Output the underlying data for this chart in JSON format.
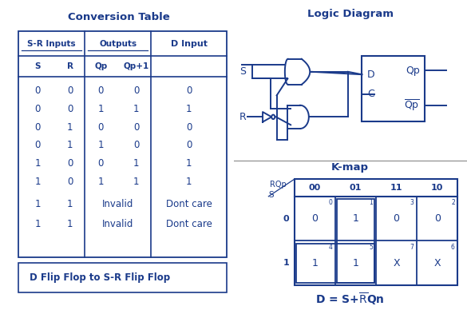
{
  "blue": "#1a3a8a",
  "light_blue_bg": "#e8f0ff",
  "table_title": "Conversion Table",
  "logic_title": "Logic Diagram",
  "kmap_title": "K-map",
  "subtitle": "D Flip Flop to S-R Flip Flop",
  "table_rows": [
    [
      "0",
      "0",
      "0",
      "0",
      "0"
    ],
    [
      "0",
      "0",
      "1",
      "1",
      "1"
    ],
    [
      "0",
      "1",
      "0",
      "0",
      "0"
    ],
    [
      "0",
      "1",
      "1",
      "0",
      "0"
    ],
    [
      "1",
      "0",
      "0",
      "1",
      "1"
    ],
    [
      "1",
      "0",
      "1",
      "1",
      "1"
    ],
    [
      "1",
      "1",
      "Invalid",
      "Dont care"
    ],
    [
      "1",
      "1",
      "Invalid",
      "Dont care"
    ]
  ],
  "kmap_col_headers": [
    "00",
    "01",
    "11",
    "10"
  ],
  "kmap_row_headers": [
    "0",
    "1"
  ],
  "kmap_cells": [
    [
      "0",
      "1",
      "0",
      "0"
    ],
    [
      "1",
      "1",
      "X",
      "X"
    ]
  ],
  "kmap_cell_numbers": [
    [
      "0",
      "1",
      "3",
      "2"
    ],
    [
      "4",
      "5",
      "7",
      "6"
    ]
  ]
}
